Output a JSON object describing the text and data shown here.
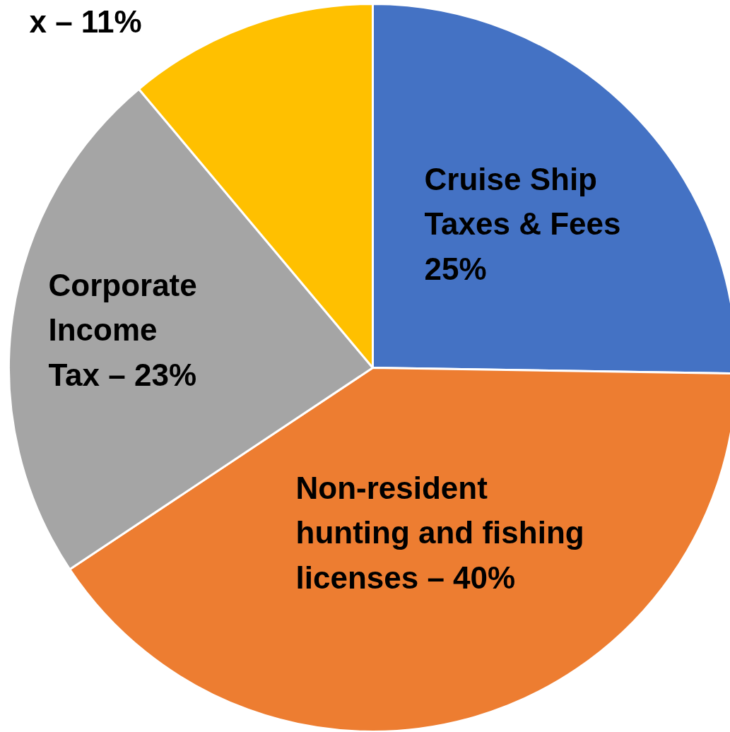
{
  "chart_data": {
    "type": "pie",
    "categories": [
      "Cruise Ship\nTaxes & Fees\n25%",
      "Non-resident\nhunting and fishing\nlicenses – 40%",
      "Corporate\nIncome\nTax – 23%",
      "x – 11%"
    ],
    "values": [
      25,
      40,
      23,
      11
    ],
    "colors": [
      "#4472c4",
      "#ed7d31",
      "#a5a5a5",
      "#ffc000"
    ]
  }
}
